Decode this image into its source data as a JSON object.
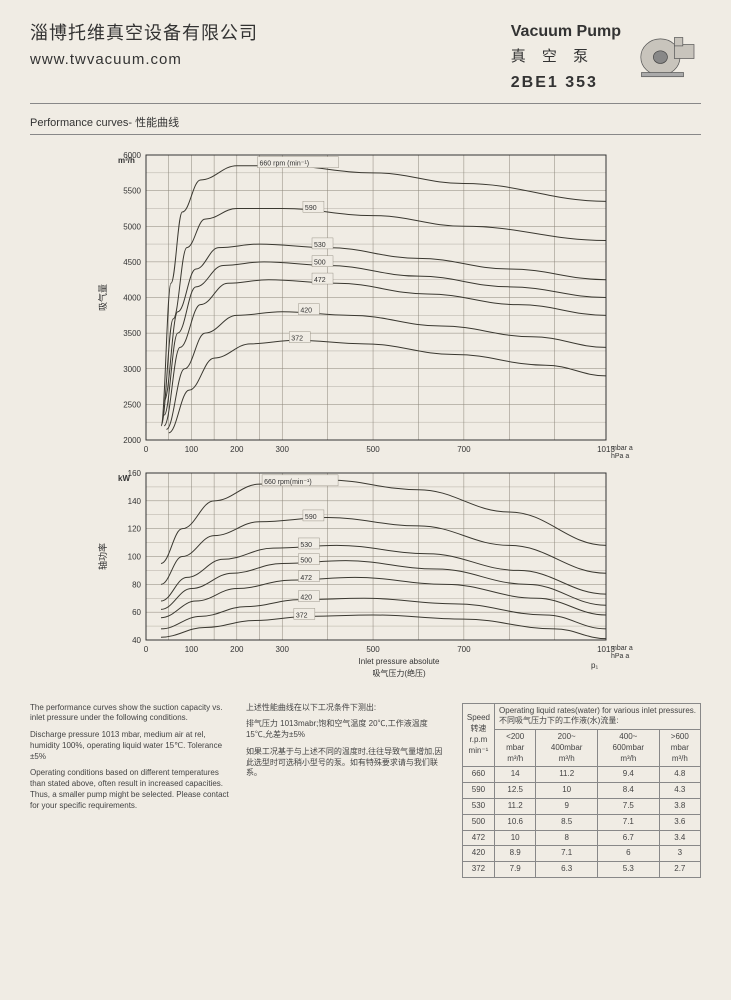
{
  "header": {
    "company_cn": "淄博托维真空设备有限公司",
    "company_url": "www.twvacuum.com",
    "product_name_en": "Vacuum Pump",
    "product_name_cn": "真 空 泵",
    "product_model": "2BE1 353"
  },
  "section_title": "Performance curves- 性能曲线",
  "chart1": {
    "type": "line",
    "y_label_cn": "吸气量",
    "y_unit": "m³/h",
    "ylim": [
      2000,
      6000
    ],
    "ytick_step": 500,
    "xlim": [
      0,
      1013
    ],
    "xticks": [
      0,
      100,
      200,
      300,
      500,
      700,
      1013
    ],
    "x_unit_lines": [
      "mbar a",
      "hPa a"
    ],
    "label_fontsize": 8,
    "grid_color": "#8a8478",
    "background_color": "#f0ece4",
    "line_color": "#3a3830",
    "line_width": 1,
    "series": [
      {
        "label": "660 rpm (min⁻¹)",
        "points": [
          [
            33,
            2200
          ],
          [
            55,
            4200
          ],
          [
            80,
            5200
          ],
          [
            120,
            5650
          ],
          [
            200,
            5850
          ],
          [
            300,
            5850
          ],
          [
            500,
            5750
          ],
          [
            700,
            5600
          ],
          [
            1013,
            5350
          ]
        ]
      },
      {
        "label": "590",
        "points": [
          [
            33,
            2200
          ],
          [
            60,
            3700
          ],
          [
            90,
            4700
          ],
          [
            130,
            5100
          ],
          [
            200,
            5250
          ],
          [
            300,
            5250
          ],
          [
            500,
            5150
          ],
          [
            700,
            5000
          ],
          [
            1013,
            4800
          ]
        ]
      },
      {
        "label": "530",
        "points": [
          [
            40,
            2550
          ],
          [
            70,
            3800
          ],
          [
            110,
            4400
          ],
          [
            160,
            4700
          ],
          [
            250,
            4750
          ],
          [
            400,
            4700
          ],
          [
            600,
            4550
          ],
          [
            800,
            4400
          ],
          [
            1013,
            4250
          ]
        ]
      },
      {
        "label": "500",
        "points": [
          [
            40,
            2350
          ],
          [
            70,
            3500
          ],
          [
            110,
            4150
          ],
          [
            170,
            4450
          ],
          [
            260,
            4500
          ],
          [
            400,
            4450
          ],
          [
            600,
            4300
          ],
          [
            800,
            4150
          ],
          [
            1013,
            4000
          ]
        ]
      },
      {
        "label": "472",
        "points": [
          [
            40,
            2200
          ],
          [
            75,
            3300
          ],
          [
            120,
            3900
          ],
          [
            180,
            4200
          ],
          [
            270,
            4250
          ],
          [
            420,
            4200
          ],
          [
            620,
            4050
          ],
          [
            820,
            3900
          ],
          [
            1013,
            3750
          ]
        ]
      },
      {
        "label": "420",
        "points": [
          [
            45,
            2150
          ],
          [
            85,
            3000
          ],
          [
            130,
            3500
          ],
          [
            200,
            3750
          ],
          [
            300,
            3800
          ],
          [
            450,
            3750
          ],
          [
            650,
            3600
          ],
          [
            850,
            3450
          ],
          [
            1013,
            3300
          ]
        ]
      },
      {
        "label": "372",
        "points": [
          [
            50,
            2100
          ],
          [
            95,
            2700
          ],
          [
            150,
            3150
          ],
          [
            230,
            3350
          ],
          [
            330,
            3400
          ],
          [
            480,
            3350
          ],
          [
            680,
            3200
          ],
          [
            880,
            3050
          ],
          [
            1013,
            2900
          ]
        ]
      }
    ]
  },
  "chart2": {
    "type": "line",
    "y_label_cn": "轴功率",
    "y_unit": "kW",
    "ylim": [
      40,
      160
    ],
    "ytick_step": 20,
    "xlim": [
      0,
      1013
    ],
    "xticks": [
      0,
      100,
      200,
      300,
      500,
      700,
      1013
    ],
    "x_label_en": "Inlet pressure absolute",
    "x_label_cn": "吸气压力(绝压)",
    "x_unit_lines": [
      "mbar a",
      "hPa a"
    ],
    "x_sym": "p₁",
    "label_fontsize": 8,
    "grid_color": "#8a8478",
    "background_color": "#f0ece4",
    "line_color": "#3a3830",
    "line_width": 1,
    "series": [
      {
        "label": "660 rpm(min⁻¹)",
        "points": [
          [
            33,
            95
          ],
          [
            80,
            120
          ],
          [
            150,
            140
          ],
          [
            250,
            152
          ],
          [
            400,
            155
          ],
          [
            600,
            148
          ],
          [
            800,
            132
          ],
          [
            1013,
            108
          ]
        ]
      },
      {
        "label": "590",
        "points": [
          [
            33,
            80
          ],
          [
            80,
            100
          ],
          [
            150,
            115
          ],
          [
            250,
            125
          ],
          [
            400,
            128
          ],
          [
            600,
            122
          ],
          [
            800,
            108
          ],
          [
            1013,
            88
          ]
        ]
      },
      {
        "label": "530",
        "points": [
          [
            33,
            68
          ],
          [
            90,
            85
          ],
          [
            170,
            98
          ],
          [
            280,
            106
          ],
          [
            420,
            108
          ],
          [
            620,
            102
          ],
          [
            820,
            90
          ],
          [
            1013,
            73
          ]
        ]
      },
      {
        "label": "500",
        "points": [
          [
            33,
            62
          ],
          [
            100,
            77
          ],
          [
            190,
            88
          ],
          [
            300,
            95
          ],
          [
            440,
            97
          ],
          [
            640,
            91
          ],
          [
            840,
            80
          ],
          [
            1013,
            65
          ]
        ]
      },
      {
        "label": "472",
        "points": [
          [
            33,
            56
          ],
          [
            110,
            68
          ],
          [
            200,
            77
          ],
          [
            320,
            83
          ],
          [
            460,
            85
          ],
          [
            660,
            80
          ],
          [
            860,
            70
          ],
          [
            1013,
            58
          ]
        ]
      },
      {
        "label": "420",
        "points": [
          [
            33,
            48
          ],
          [
            120,
            57
          ],
          [
            220,
            64
          ],
          [
            340,
            69
          ],
          [
            480,
            70
          ],
          [
            680,
            66
          ],
          [
            880,
            58
          ],
          [
            1013,
            48
          ]
        ]
      },
      {
        "label": "372",
        "points": [
          [
            33,
            42
          ],
          [
            130,
            49
          ],
          [
            240,
            54
          ],
          [
            360,
            57
          ],
          [
            500,
            58
          ],
          [
            700,
            55
          ],
          [
            900,
            48
          ],
          [
            1013,
            41
          ]
        ]
      }
    ]
  },
  "footer": {
    "en_paras": [
      "The performance curves show the suction capacity vs. inlet pressure under the following conditions.",
      "Discharge pressure 1013 mbar, medium air at rel, humidity 100%, operating liquid water 15℃. Tolerance ±5%",
      "Operating conditions based on different temperatures than stated above, often result in increased capacities. Thus, a smaller pump might be selected. Please contact for your specific requirements."
    ],
    "cn_paras": [
      "上述性能曲线在以下工况条件下测出:",
      "排气压力 1013mabr;饱和空气温度 20℃,工作液温度 15℃,允差为±5%",
      "如果工况基于与上述不同的温度时,往往导致气量增加,因此选型时可选稍小型号的泵。如有特殊要求请与我们联系。"
    ]
  },
  "table": {
    "head_speed": "Speed",
    "head_speed_cn": "转速",
    "head_rpm": "r.p.m",
    "head_unit": "min⁻¹",
    "head_rates_en": "Operating liquid rates(water) for various inlet pressures.",
    "head_rates_cn": "不同吸气压力下的工作液(水)流量:",
    "col_unit": "m³/h",
    "cols": [
      "<200\nmbar",
      "200~\n400mbar",
      "400~\n600mbar",
      ">600\nmbar"
    ],
    "rows": [
      {
        "rpm": "660",
        "v": [
          "14",
          "11.2",
          "9.4",
          "4.8"
        ]
      },
      {
        "rpm": "590",
        "v": [
          "12.5",
          "10",
          "8.4",
          "4.3"
        ]
      },
      {
        "rpm": "530",
        "v": [
          "11.2",
          "9",
          "7.5",
          "3.8"
        ]
      },
      {
        "rpm": "500",
        "v": [
          "10.6",
          "8.5",
          "7.1",
          "3.6"
        ]
      },
      {
        "rpm": "472",
        "v": [
          "10",
          "8",
          "6.7",
          "3.4"
        ]
      },
      {
        "rpm": "420",
        "v": [
          "8.9",
          "7.1",
          "6",
          "3"
        ]
      },
      {
        "rpm": "372",
        "v": [
          "7.9",
          "6.3",
          "5.3",
          "2.7"
        ]
      }
    ]
  }
}
